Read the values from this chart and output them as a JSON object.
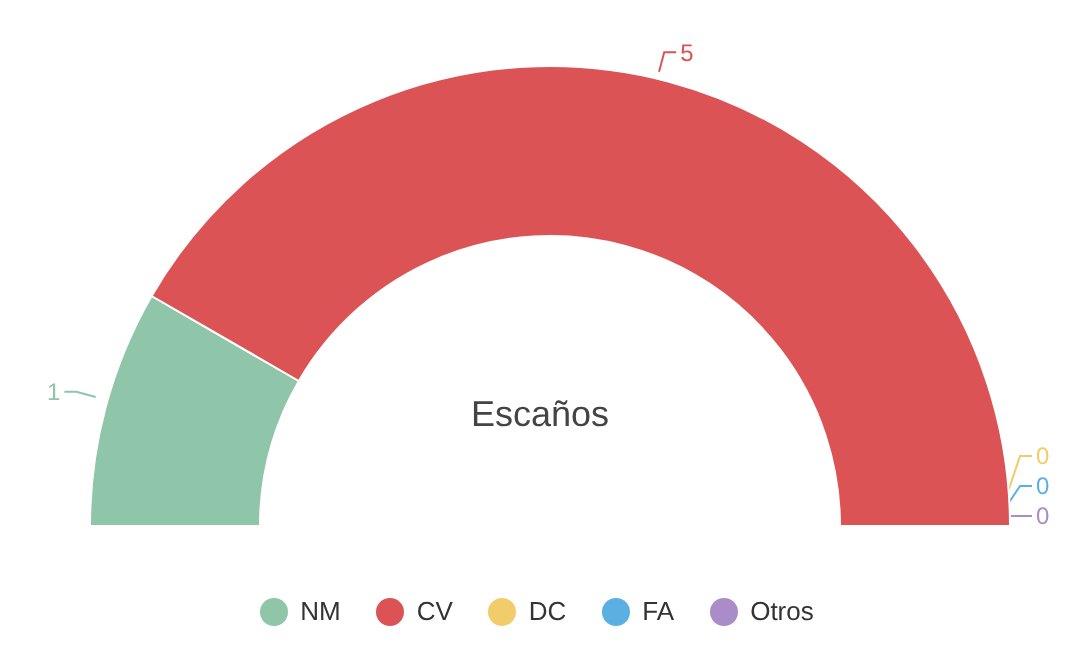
{
  "chart_data": {
    "type": "donut",
    "title": "Escaños",
    "categories": [
      "NM",
      "CV",
      "DC",
      "FA",
      "Otros"
    ],
    "values": [
      1,
      5,
      0,
      0,
      0
    ],
    "value_labels": [
      "1",
      "5",
      "0",
      "0",
      "0"
    ],
    "colors": [
      "#8fc5a8",
      "#dc5356",
      "#f0cd6a",
      "#5bb0e3",
      "#a98cc8"
    ],
    "legend": "bottom"
  }
}
